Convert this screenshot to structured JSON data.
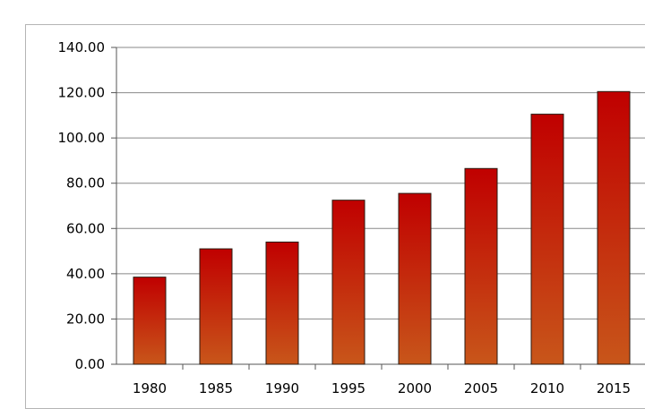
{
  "chart_data": {
    "type": "bar",
    "title": "",
    "xlabel": "",
    "ylabel": "",
    "categories": [
      "1980",
      "1985",
      "1990",
      "1995",
      "2000",
      "2005",
      "2010",
      "2015"
    ],
    "values": [
      38.5,
      51,
      54,
      72.5,
      75.5,
      86.5,
      110.5,
      120.5
    ],
    "ylim": [
      0,
      140
    ],
    "yticks": [
      "0.00",
      "20.00",
      "40.00",
      "60.00",
      "80.00",
      "100.00",
      "120.00",
      "140.00"
    ],
    "grid": true,
    "legend": "none",
    "colors": {
      "bar_top": "#c00000",
      "bar_bottom": "#c8561a",
      "bar_outline": "#2a1a10",
      "gridline": "#888888",
      "axis": "#555555"
    }
  }
}
